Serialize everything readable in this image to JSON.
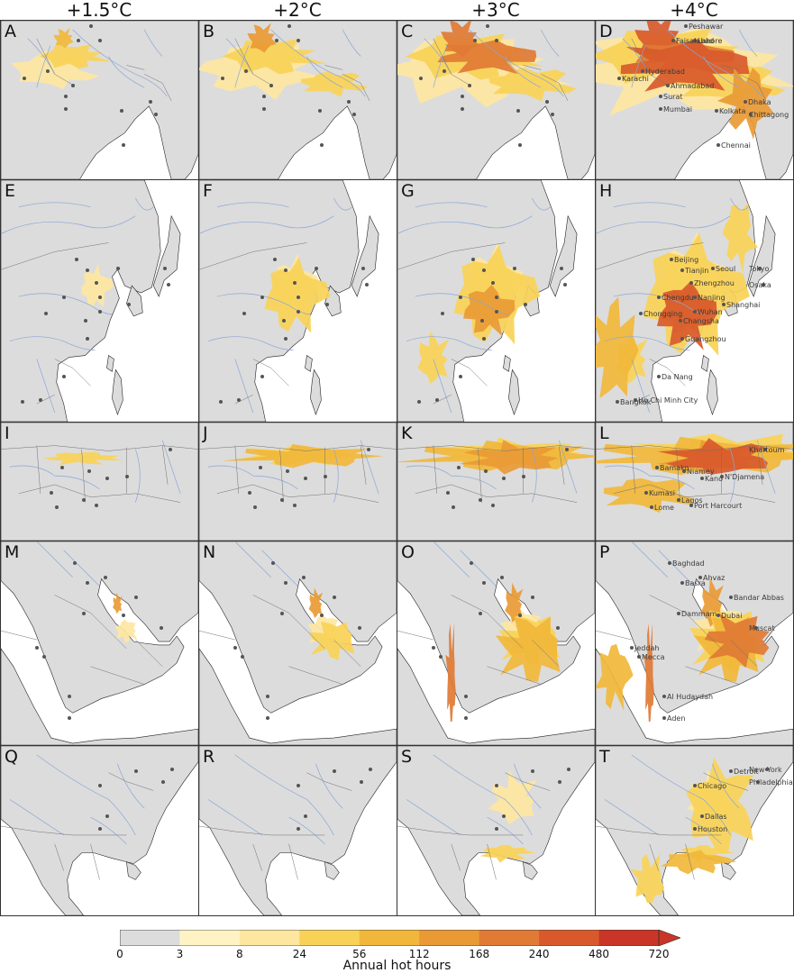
{
  "columns": [
    "+1.5°C",
    "+2°C",
    "+3°C",
    "+4°C"
  ],
  "rows": [
    {
      "region": "south-asia",
      "letters": [
        "A",
        "B",
        "C",
        "D"
      ],
      "cities": [
        "Peshawar",
        "Faisalabad",
        "Lahore",
        "Karachi",
        "Hyderabad",
        "Ahmadabad",
        "Surat",
        "Mumbai",
        "Kolkata",
        "Dhaka",
        "Chittagong",
        "Chennai"
      ]
    },
    {
      "region": "east-asia",
      "letters": [
        "E",
        "F",
        "G",
        "H"
      ],
      "cities": [
        "Beijing",
        "Tianjin",
        "Seoul",
        "Tokyo",
        "Zhengzhou",
        "Chengdu",
        "Nanjing",
        "Osaka",
        "Wuhan",
        "Shanghai",
        "Chongqing",
        "Changsha",
        "Guangzhou",
        "Da Nang",
        "Bangkok",
        "Ho Chi Minh City"
      ]
    },
    {
      "region": "west-africa",
      "letters": [
        "I",
        "J",
        "K",
        "L"
      ],
      "cities": [
        "Khartoum",
        "Bamako",
        "Niamey",
        "Kano",
        "N'Djamena",
        "Kumasi",
        "Lagos",
        "Lome",
        "Port Harcourt"
      ]
    },
    {
      "region": "middle-east",
      "letters": [
        "M",
        "N",
        "O",
        "P"
      ],
      "cities": [
        "Baghdad",
        "Ahvaz",
        "Basra",
        "Bandar Abbas",
        "Dammam",
        "Dubai",
        "Muscat",
        "Jeddah",
        "Mecca",
        "Al Hudaydah",
        "Aden"
      ]
    },
    {
      "region": "north-america",
      "letters": [
        "Q",
        "R",
        "S",
        "T"
      ],
      "cities": [
        "Detroit",
        "New York",
        "Chicago",
        "Philadelphia",
        "Dallas",
        "Houston"
      ]
    }
  ],
  "legend": {
    "title": "Annual hot hours",
    "ticks": [
      "0",
      "3",
      "8",
      "24",
      "56",
      "112",
      "168",
      "240",
      "480",
      "720"
    ],
    "colors": [
      "#dcdcdc",
      "#fff3c4",
      "#fde6a0",
      "#f8d257",
      "#f1b73a",
      "#e99a35",
      "#e07a34",
      "#d85a2c",
      "#c93526"
    ],
    "extend": "max"
  },
  "colors": {
    "land": "#dcdcdc",
    "water": "#ffffff",
    "river": "#8aa6d6",
    "border": "#6f6f6f"
  }
}
